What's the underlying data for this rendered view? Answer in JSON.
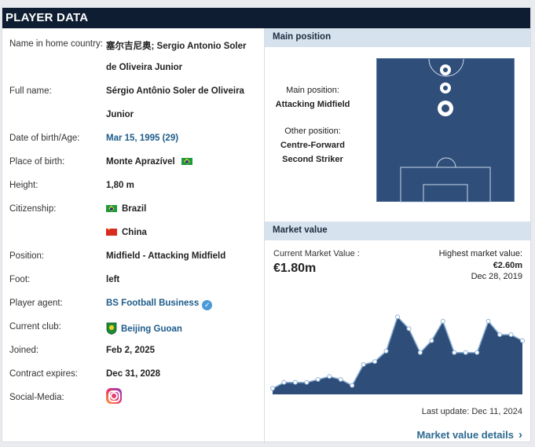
{
  "header": {
    "title": "PLAYER DATA"
  },
  "player": {
    "home_name_label": "Name in home country:",
    "home_name_line1": "塞尔吉尼奥; Sergio Antonio Soler",
    "home_name_line2": "de Oliveira Junior",
    "full_name_label": "Full name:",
    "full_name_line1": "Sérgio Antônio Soler de Oliveira",
    "full_name_line2": "Junior",
    "dob_label": "Date of birth/Age:",
    "dob_value": "Mar 15, 1995 (29)",
    "birthplace_label": "Place of birth:",
    "birthplace_value": "Monte Aprazível",
    "height_label": "Height:",
    "height_value": "1,80 m",
    "citizenship_label": "Citizenship:",
    "citizenship_1": "Brazil",
    "citizenship_2": "China",
    "position_label": "Position:",
    "position_value": "Midfield - Attacking Midfield",
    "foot_label": "Foot:",
    "foot_value": "left",
    "agent_label": "Player agent:",
    "agent_value": "BS Football Business",
    "club_label": "Current club:",
    "club_value": "Beijing Guoan",
    "joined_label": "Joined:",
    "joined_value": "Feb 2, 2025",
    "contract_label": "Contract expires:",
    "contract_value": "Dec 31, 2028",
    "social_label": "Social-Media:",
    "social_icon": "instagram-icon"
  },
  "main_position": {
    "section_title": "Main position",
    "main_label": "Main position:",
    "main_value": "Attacking Midfield",
    "other_label": "Other position:",
    "other_1": "Centre-Forward",
    "other_2": "Second Striker"
  },
  "market_value": {
    "section_title": "Market value",
    "current_label": "Current Market Value :",
    "current_value": "€1.80m",
    "highest_label": "Highest market value:",
    "highest_value": "€2.60m",
    "highest_date": "Dec 28, 2019",
    "last_update": "Last update: Dec 11, 2024",
    "details_link": "Market value details",
    "colors": {
      "area": "#2e4e79",
      "line": "#8fb3d6",
      "marker": "#ffffff"
    }
  },
  "chart_data": {
    "type": "area",
    "title": "",
    "xlabel": "",
    "ylabel": "",
    "values": [
      0.2,
      0.4,
      0.4,
      0.4,
      0.5,
      0.6,
      0.5,
      0.3,
      1.0,
      1.1,
      1.45,
      2.6,
      2.2,
      1.4,
      1.8,
      2.45,
      1.4,
      1.4,
      1.4,
      2.45,
      2.0,
      2.0,
      1.8
    ],
    "ylim": [
      0,
      3.0
    ]
  }
}
